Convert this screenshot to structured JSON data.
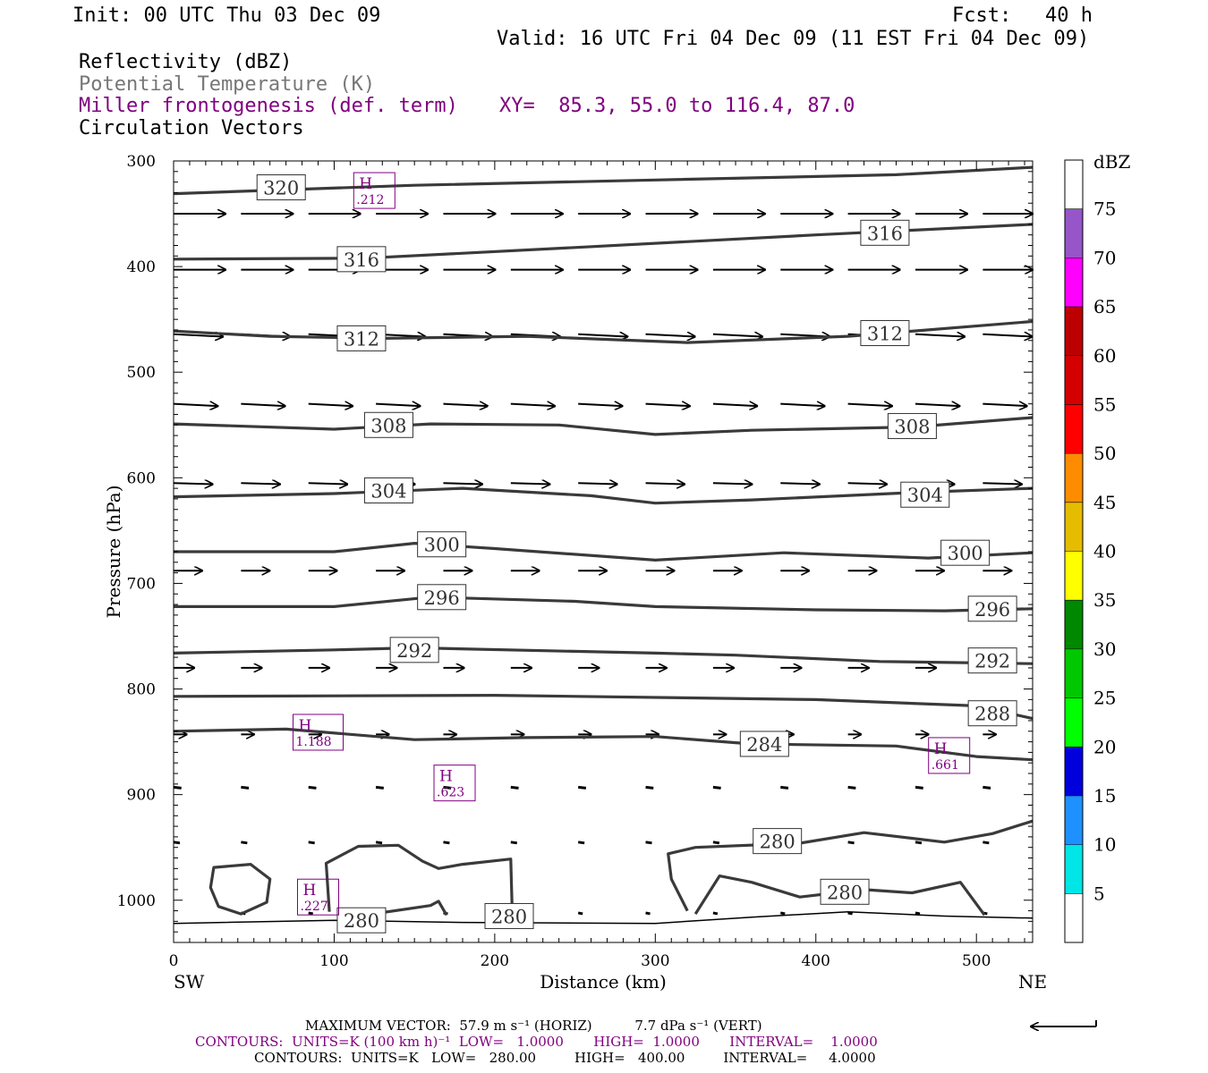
{
  "header": {
    "init": "Init: 00 UTC Thu 03 Dec 09",
    "fcst_label": "Fcst:",
    "fcst_value": "40 h",
    "valid": "Valid: 16 UTC Fri 04 Dec 09 (11 EST Fri 04 Dec 09)",
    "field1": "Reflectivity (dBZ)",
    "field2": "Potential Temperature (K)",
    "field3": "Miller frontogenesis (def. term)",
    "xy": "XY=  85.3, 55.0 to 116.4, 87.0",
    "field4": "Circulation Vectors",
    "colors": {
      "field2": "#777777",
      "field3": "#800080",
      "xy": "#800080"
    }
  },
  "footer": {
    "vector_line": "MAXIMUM VECTOR:  57.9 m s⁻¹ (HORIZ)          7.7 dPa s⁻¹ (VERT)",
    "contours_fronto": "CONTOURS:  UNITS=K (100 km h)⁻¹  LOW=   1.0000       HIGH=  1.0000       INTERVAL=    1.0000",
    "contours_theta": "CONTOURS:  UNITS=K   LOW=   280.00         HIGH=   400.00         INTERVAL=     4.0000"
  },
  "chart_data": {
    "type": "cross-section",
    "xlabel": "Distance (km)",
    "ylabel": "Pressure (hPa)",
    "xlim": [
      0,
      535
    ],
    "ylim": [
      1040,
      300
    ],
    "x_ticks": [
      0,
      100,
      200,
      300,
      400,
      500
    ],
    "y_ticks": [
      300,
      400,
      500,
      600,
      700,
      800,
      900,
      1000
    ],
    "left_end_label": "SW",
    "right_end_label": "NE",
    "colorbar": {
      "unit": "dBZ",
      "levels": [
        5,
        10,
        15,
        20,
        25,
        30,
        35,
        40,
        45,
        50,
        55,
        60,
        65,
        70,
        75
      ],
      "colors": [
        "#ffffff",
        "#00e5e5",
        "#1e90ff",
        "#0000dd",
        "#00ff00",
        "#00c800",
        "#008800",
        "#ffff00",
        "#e5bc00",
        "#ff8c00",
        "#ff0000",
        "#d40000",
        "#bc0000",
        "#ff00ff",
        "#9655c8",
        "#ffffff"
      ]
    },
    "theta_contours": [
      {
        "value": 320,
        "label": "320",
        "points": [
          [
            0,
            331
          ],
          [
            150,
            323
          ],
          [
            300,
            318
          ],
          [
            450,
            313
          ],
          [
            535,
            306
          ]
        ],
        "labels_at": [
          [
            67,
            325
          ]
        ]
      },
      {
        "value": 316,
        "label": "316",
        "points": [
          [
            0,
            393
          ],
          [
            120,
            392
          ],
          [
            250,
            382
          ],
          [
            400,
            370
          ],
          [
            535,
            360
          ]
        ],
        "labels_at": [
          [
            117,
            393
          ],
          [
            443,
            368
          ]
        ]
      },
      {
        "value": 312,
        "label": "312",
        "points": [
          [
            0,
            461
          ],
          [
            60,
            466
          ],
          [
            130,
            468
          ],
          [
            220,
            466
          ],
          [
            320,
            472
          ],
          [
            420,
            466
          ],
          [
            535,
            452
          ]
        ],
        "labels_at": [
          [
            117,
            468
          ],
          [
            443,
            463
          ]
        ]
      },
      {
        "value": 308,
        "label": "308",
        "points": [
          [
            0,
            549
          ],
          [
            100,
            554
          ],
          [
            160,
            549
          ],
          [
            240,
            550
          ],
          [
            300,
            559
          ],
          [
            360,
            555
          ],
          [
            460,
            552
          ],
          [
            535,
            543
          ]
        ],
        "labels_at": [
          [
            134,
            550
          ],
          [
            460,
            551
          ]
        ]
      },
      {
        "value": 304,
        "label": "304",
        "points": [
          [
            0,
            618
          ],
          [
            100,
            615
          ],
          [
            180,
            610
          ],
          [
            260,
            617
          ],
          [
            300,
            624
          ],
          [
            360,
            621
          ],
          [
            460,
            614
          ],
          [
            535,
            610
          ]
        ],
        "labels_at": [
          [
            134,
            612
          ],
          [
            468,
            616
          ]
        ]
      },
      {
        "value": 300,
        "label": "300",
        "points": [
          [
            0,
            670
          ],
          [
            100,
            670
          ],
          [
            150,
            662
          ],
          [
            200,
            667
          ],
          [
            300,
            678
          ],
          [
            380,
            671
          ],
          [
            470,
            676
          ],
          [
            535,
            671
          ]
        ],
        "labels_at": [
          [
            167,
            663
          ],
          [
            493,
            671
          ]
        ]
      },
      {
        "value": 296,
        "label": "296",
        "points": [
          [
            0,
            722
          ],
          [
            100,
            722
          ],
          [
            160,
            713
          ],
          [
            250,
            717
          ],
          [
            300,
            722
          ],
          [
            400,
            725
          ],
          [
            480,
            726
          ],
          [
            535,
            724
          ]
        ],
        "labels_at": [
          [
            167,
            713
          ],
          [
            510,
            724
          ]
        ]
      },
      {
        "value": 292,
        "label": "292",
        "points": [
          [
            0,
            766
          ],
          [
            100,
            763
          ],
          [
            150,
            761
          ],
          [
            300,
            766
          ],
          [
            350,
            768
          ],
          [
            440,
            774
          ],
          [
            535,
            776
          ]
        ],
        "labels_at": [
          [
            150,
            763
          ],
          [
            510,
            773
          ]
        ]
      },
      {
        "value": 288,
        "label": "288",
        "points": [
          [
            0,
            807
          ],
          [
            200,
            806
          ],
          [
            400,
            810
          ],
          [
            500,
            816
          ],
          [
            535,
            828
          ]
        ],
        "labels_at": [
          [
            510,
            823
          ]
        ]
      },
      {
        "value": 284,
        "label": "284",
        "points": [
          [
            0,
            840
          ],
          [
            70,
            838
          ],
          [
            150,
            848
          ],
          [
            220,
            846
          ],
          [
            300,
            845
          ],
          [
            360,
            852
          ],
          [
            450,
            854
          ],
          [
            500,
            864
          ],
          [
            535,
            867
          ]
        ],
        "labels_at": [
          [
            368,
            852
          ]
        ]
      },
      {
        "value": 280,
        "label": "280",
        "points": [
          [
            0,
            1022
          ],
          [
            100,
            1019
          ],
          [
            180,
            1021
          ],
          [
            300,
            1022
          ],
          [
            360,
            1016
          ],
          [
            420,
            1011
          ],
          [
            480,
            1015
          ],
          [
            535,
            1017
          ]
        ],
        "labels_at": [
          [
            117,
            1019
          ],
          [
            209,
            1015
          ]
        ]
      },
      {
        "value": 280,
        "label": "280",
        "closed": true,
        "points": [
          [
            25,
            969
          ],
          [
            48,
            966
          ],
          [
            60,
            980
          ],
          [
            58,
            1002
          ],
          [
            42,
            1013
          ],
          [
            28,
            1006
          ],
          [
            23,
            988
          ]
        ],
        "labels_at": []
      },
      {
        "value": 280,
        "label": "280",
        "points": [
          [
            97,
            1011
          ],
          [
            95,
            965
          ],
          [
            115,
            949
          ],
          [
            140,
            948
          ],
          [
            155,
            963
          ],
          [
            165,
            970
          ],
          [
            180,
            966
          ],
          [
            210,
            961
          ],
          [
            211,
            1016
          ]
        ],
        "labels_at": []
      },
      {
        "value": 280,
        "label": "280",
        "points": [
          [
            170,
            1014
          ],
          [
            165,
            1001
          ],
          [
            160,
            1005
          ],
          [
            115,
            1015
          ]
        ],
        "labels_at": []
      },
      {
        "value": 280,
        "label": "280",
        "points": [
          [
            320,
            1010
          ],
          [
            310,
            980
          ],
          [
            308,
            956
          ],
          [
            325,
            950
          ],
          [
            390,
            946
          ],
          [
            430,
            936
          ],
          [
            480,
            945
          ],
          [
            510,
            937
          ],
          [
            535,
            925
          ]
        ],
        "labels_at": [
          [
            376,
            944
          ]
        ]
      },
      {
        "value": 280,
        "label": "280",
        "points": [
          [
            325,
            1013
          ],
          [
            340,
            977
          ],
          [
            360,
            983
          ],
          [
            390,
            997
          ],
          [
            430,
            990
          ],
          [
            460,
            993
          ],
          [
            490,
            983
          ],
          [
            505,
            1014
          ]
        ],
        "labels_at": [
          [
            418,
            992
          ]
        ]
      }
    ],
    "frontogenesis_maxima": [
      {
        "label": "H",
        "value": ".212",
        "x": 125,
        "y": 328
      },
      {
        "label": "H",
        "value": "1.188",
        "x": 90,
        "y": 841
      },
      {
        "label": "H",
        "value": ".661",
        "x": 483,
        "y": 863
      },
      {
        "label": "H",
        "value": ".623",
        "x": 175,
        "y": 889
      },
      {
        "label": "H",
        "value": ".227",
        "x": 90,
        "y": 997
      }
    ],
    "vector_rows": [
      {
        "p": 350,
        "u": 1.0,
        "w": 0.0,
        "xs": [
          0,
          42,
          84,
          126,
          168,
          210,
          252,
          294,
          336,
          378,
          420,
          462,
          504
        ]
      },
      {
        "p": 403,
        "u": 1.0,
        "w": 0.0,
        "xs": [
          0,
          42,
          84,
          126,
          168,
          210,
          252,
          294,
          336,
          378,
          420,
          462,
          504
        ]
      },
      {
        "p": 464,
        "u": 0.95,
        "w": -0.05,
        "xs": [
          0,
          42,
          84,
          126,
          168,
          210,
          252,
          294,
          336,
          378,
          420,
          462,
          504
        ]
      },
      {
        "p": 530,
        "u": 0.85,
        "w": -0.05,
        "xs": [
          0,
          42,
          84,
          126,
          168,
          210,
          252,
          294,
          336,
          378,
          420,
          462,
          504
        ]
      },
      {
        "p": 605,
        "u": 0.75,
        "w": -0.03,
        "xs": [
          0,
          42,
          84,
          126,
          168,
          210,
          252,
          294,
          336,
          378,
          420,
          462,
          504
        ]
      },
      {
        "p": 688,
        "u": 0.55,
        "w": 0.0,
        "xs": [
          0,
          42,
          84,
          126,
          168,
          210,
          252,
          294,
          336,
          378,
          420,
          462,
          504
        ]
      },
      {
        "p": 780,
        "u": 0.4,
        "w": 0.0,
        "xs": [
          0,
          42,
          84,
          126,
          168,
          210,
          252,
          294,
          336,
          378,
          420,
          462,
          504
        ]
      },
      {
        "p": 843,
        "u": 0.25,
        "w": 0.0,
        "xs": [
          0,
          42,
          84,
          126,
          168,
          210,
          252,
          294,
          336,
          378,
          420,
          462,
          504
        ]
      },
      {
        "p": 893,
        "u": 0.15,
        "w": 0.0,
        "xs": [
          0,
          42,
          84,
          126,
          168,
          210,
          252,
          294,
          336,
          378,
          420,
          462,
          504
        ]
      },
      {
        "p": 945,
        "u": 0.12,
        "w": 0.0,
        "xs": [
          0,
          42,
          84,
          126,
          168,
          210,
          252,
          294,
          336,
          378,
          420,
          462,
          504
        ]
      },
      {
        "p": 1012,
        "u": 0.08,
        "w": 0.0,
        "xs": [
          42,
          84,
          126,
          168,
          210,
          252,
          294,
          336,
          378,
          420,
          462,
          504
        ]
      }
    ]
  }
}
